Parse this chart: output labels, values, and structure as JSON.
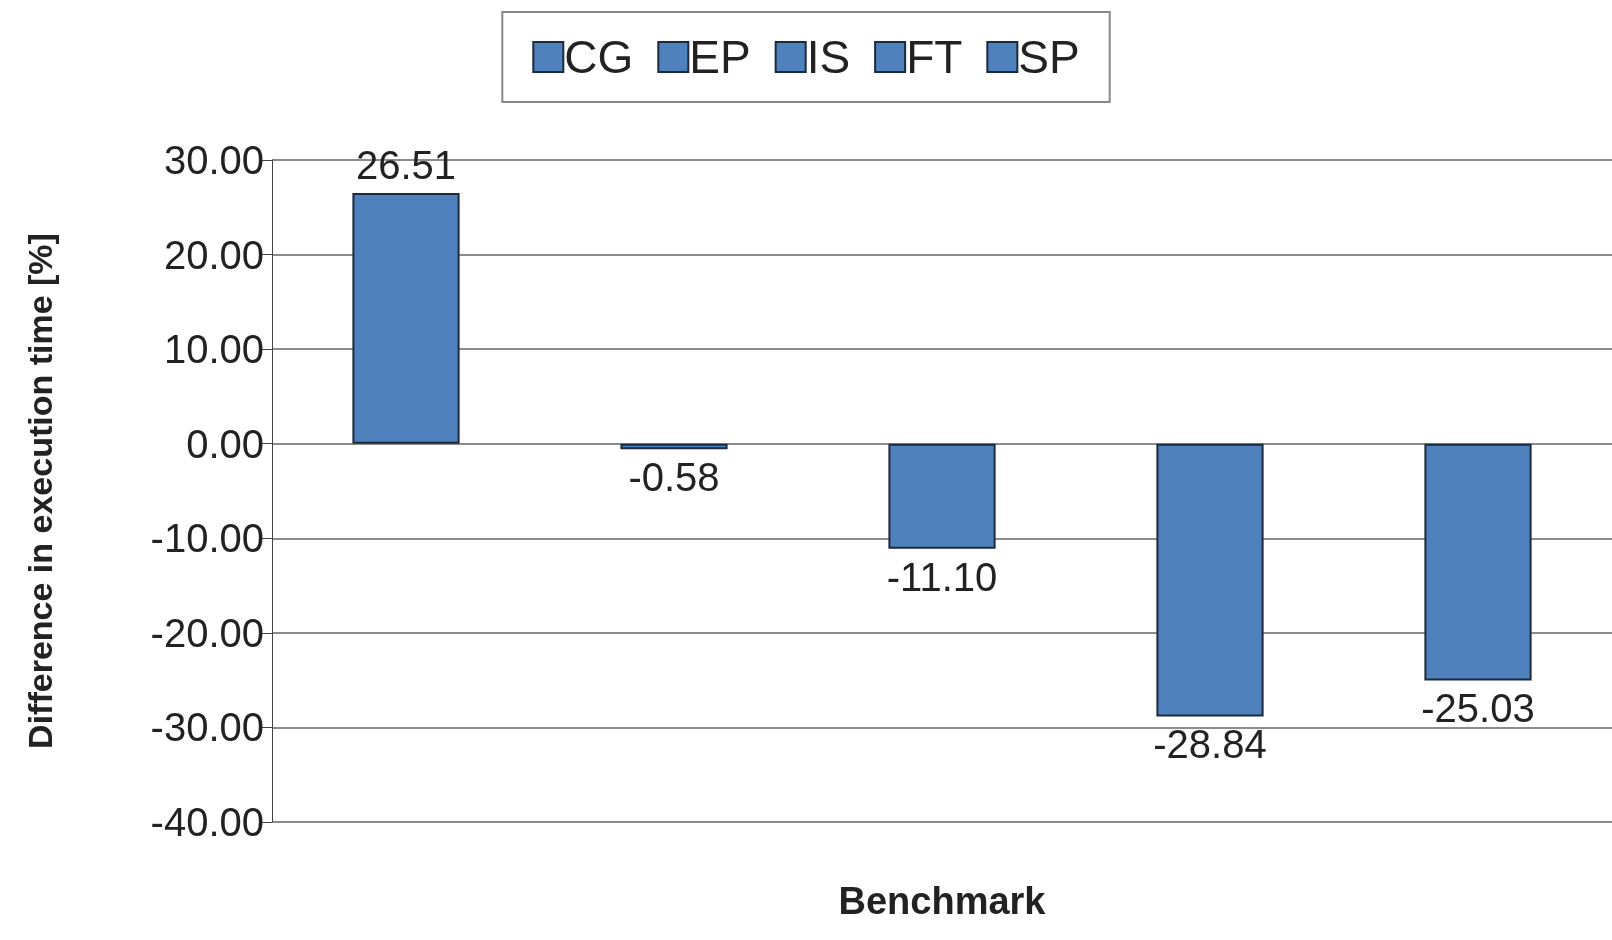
{
  "chart_data": {
    "type": "bar",
    "xlabel": "Benchmark",
    "ylabel": "Difference in execution time [%]",
    "categories": [
      null
    ],
    "series": [
      {
        "name": "CG",
        "color": "#4f81bd",
        "values": [
          26.51
        ],
        "value_labels": [
          "26.51"
        ]
      },
      {
        "name": "EP",
        "color": "#4f81bd",
        "values": [
          -0.58
        ],
        "value_labels": [
          "-0.58"
        ]
      },
      {
        "name": "IS",
        "color": "#4f81bd",
        "values": [
          -11.1
        ],
        "value_labels": [
          "-11.10"
        ]
      },
      {
        "name": "FT",
        "color": "#4f81bd",
        "values": [
          -28.84
        ],
        "value_labels": [
          "-28.84"
        ]
      },
      {
        "name": "SP",
        "color": "#4f81bd",
        "values": [
          -25.03
        ],
        "value_labels": [
          "-25.03"
        ]
      }
    ],
    "ylim": [
      -40,
      30
    ],
    "yticks": [
      {
        "value": -40,
        "label": "-40.00"
      },
      {
        "value": -30,
        "label": "-30.00"
      },
      {
        "value": -20,
        "label": "-20.00"
      },
      {
        "value": -10,
        "label": "-10.00"
      },
      {
        "value": 0,
        "label": "0.00"
      },
      {
        "value": 10,
        "label": "10.00"
      },
      {
        "value": 20,
        "label": "20.00"
      },
      {
        "value": 30,
        "label": "30.00"
      }
    ],
    "grid": "y",
    "legend": "top",
    "tick_labels": "y"
  }
}
